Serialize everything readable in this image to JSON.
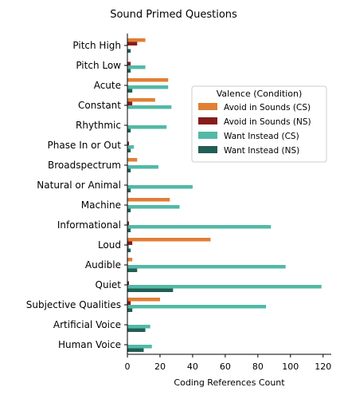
{
  "chart_data": {
    "type": "bar",
    "orientation": "horizontal",
    "title": "Sound Primed Questions",
    "xlabel": "Coding References Count",
    "ylabel": "",
    "xlim": [
      0,
      125
    ],
    "xticks": [
      0,
      20,
      40,
      60,
      80,
      100,
      120
    ],
    "grid": false,
    "legend": {
      "title": "Valence (Condition)",
      "placement": "right"
    },
    "categories": [
      "Pitch High",
      "Pitch Low",
      "Acute",
      "Constant",
      "Rhythmic",
      "Phase In or Out",
      "Broadspectrum",
      "Natural or Animal",
      "Machine",
      "Informational",
      "Loud",
      "Audible",
      "Quiet",
      "Subjective Qualities",
      "Artificial Voice",
      "Human Voice"
    ],
    "series": [
      {
        "name": "Avoid in Sounds (CS)",
        "color": "#e07f35",
        "values": [
          11,
          0,
          25,
          17,
          0,
          0,
          6,
          0,
          26,
          0,
          51,
          3,
          0,
          20,
          0,
          0
        ]
      },
      {
        "name": "Avoid in Sounds (NS)",
        "color": "#861c1c",
        "values": [
          6,
          2,
          0,
          3,
          0,
          1,
          0,
          0,
          0,
          1,
          3,
          0,
          1,
          2,
          0,
          0
        ]
      },
      {
        "name": "Want Instead (CS)",
        "color": "#52b9a6",
        "values": [
          0,
          11,
          25,
          27,
          24,
          4,
          19,
          40,
          32,
          88,
          1,
          97,
          119,
          85,
          14,
          15
        ]
      },
      {
        "name": "Want Instead (NS)",
        "color": "#215e55",
        "values": [
          2,
          2,
          3,
          0,
          2,
          2,
          2,
          2,
          2,
          2,
          2,
          6,
          28,
          3,
          11,
          10
        ]
      }
    ]
  }
}
